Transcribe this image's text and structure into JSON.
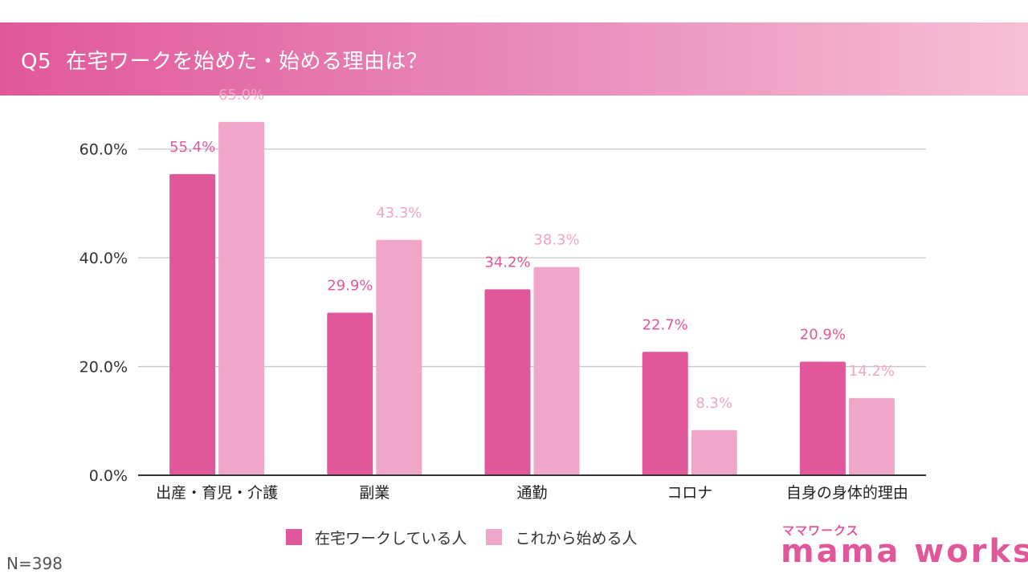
{
  "header": {
    "question_number": "Q5",
    "title": "在宅ワークを始めた・始める理由は？"
  },
  "colors": {
    "series_1": "#e0589a",
    "series_2": "#f0a6c8",
    "header_start": "#e1589a",
    "header_end": "#f7bfd5",
    "grid": "#c8c8c8",
    "axis": "#333333"
  },
  "chart_data": {
    "type": "bar",
    "title": "在宅ワークを始めた・始める理由は？",
    "xlabel": "",
    "ylabel": "",
    "ylim": [
      0,
      70
    ],
    "yticks": [
      0,
      20,
      40,
      60
    ],
    "ytick_labels": [
      "0.0%",
      "20.0%",
      "40.0%",
      "60.0%"
    ],
    "grid": true,
    "legend_position": "bottom",
    "categories": [
      "出産・育児・介護",
      "副業",
      "通勤",
      "コロナ",
      "自身の身体的理由"
    ],
    "series": [
      {
        "name": "在宅ワークしている人",
        "values": [
          55.4,
          29.9,
          34.2,
          22.7,
          20.9
        ],
        "labels": [
          "55.4%",
          "29.9%",
          "34.2%",
          "22.7%",
          "20.9%"
        ]
      },
      {
        "name": "これから始める人",
        "values": [
          65.0,
          43.3,
          38.3,
          8.3,
          14.2
        ],
        "labels": [
          "65.0%",
          "43.3%",
          "38.3%",
          "8.3%",
          "14.2%"
        ]
      }
    ]
  },
  "footer": {
    "sample_size": "N=398",
    "logo_kana": "ママワークス",
    "logo_text": "mama works"
  }
}
